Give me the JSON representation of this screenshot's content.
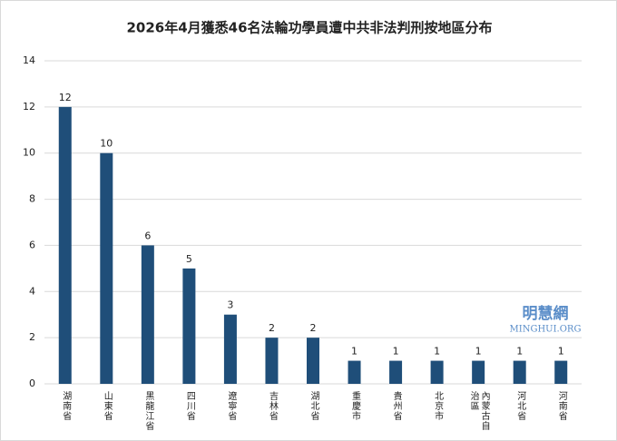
{
  "chart_data": {
    "type": "bar",
    "title": "2026年4月獲悉46名法輪功學員遭中共非法判刑按地區分布",
    "categories": [
      "湖南省",
      "山東省",
      "黑龍江省",
      "四川省",
      "遼寧省",
      "吉林省",
      "湖北省",
      "重慶市",
      "貴州省",
      "北京市",
      "內蒙古自治區",
      "河北省",
      "河南省"
    ],
    "values": [
      12,
      10,
      6,
      5,
      3,
      2,
      2,
      1,
      1,
      1,
      1,
      1,
      1
    ],
    "color": "#1f4e79",
    "ylim": [
      0,
      14
    ],
    "yticks": [
      0,
      2,
      4,
      6,
      8,
      10,
      12,
      14
    ],
    "grid": true,
    "data_labels": true,
    "watermark": "明慧網",
    "watermark_sub": "MINGHUI.ORG"
  }
}
